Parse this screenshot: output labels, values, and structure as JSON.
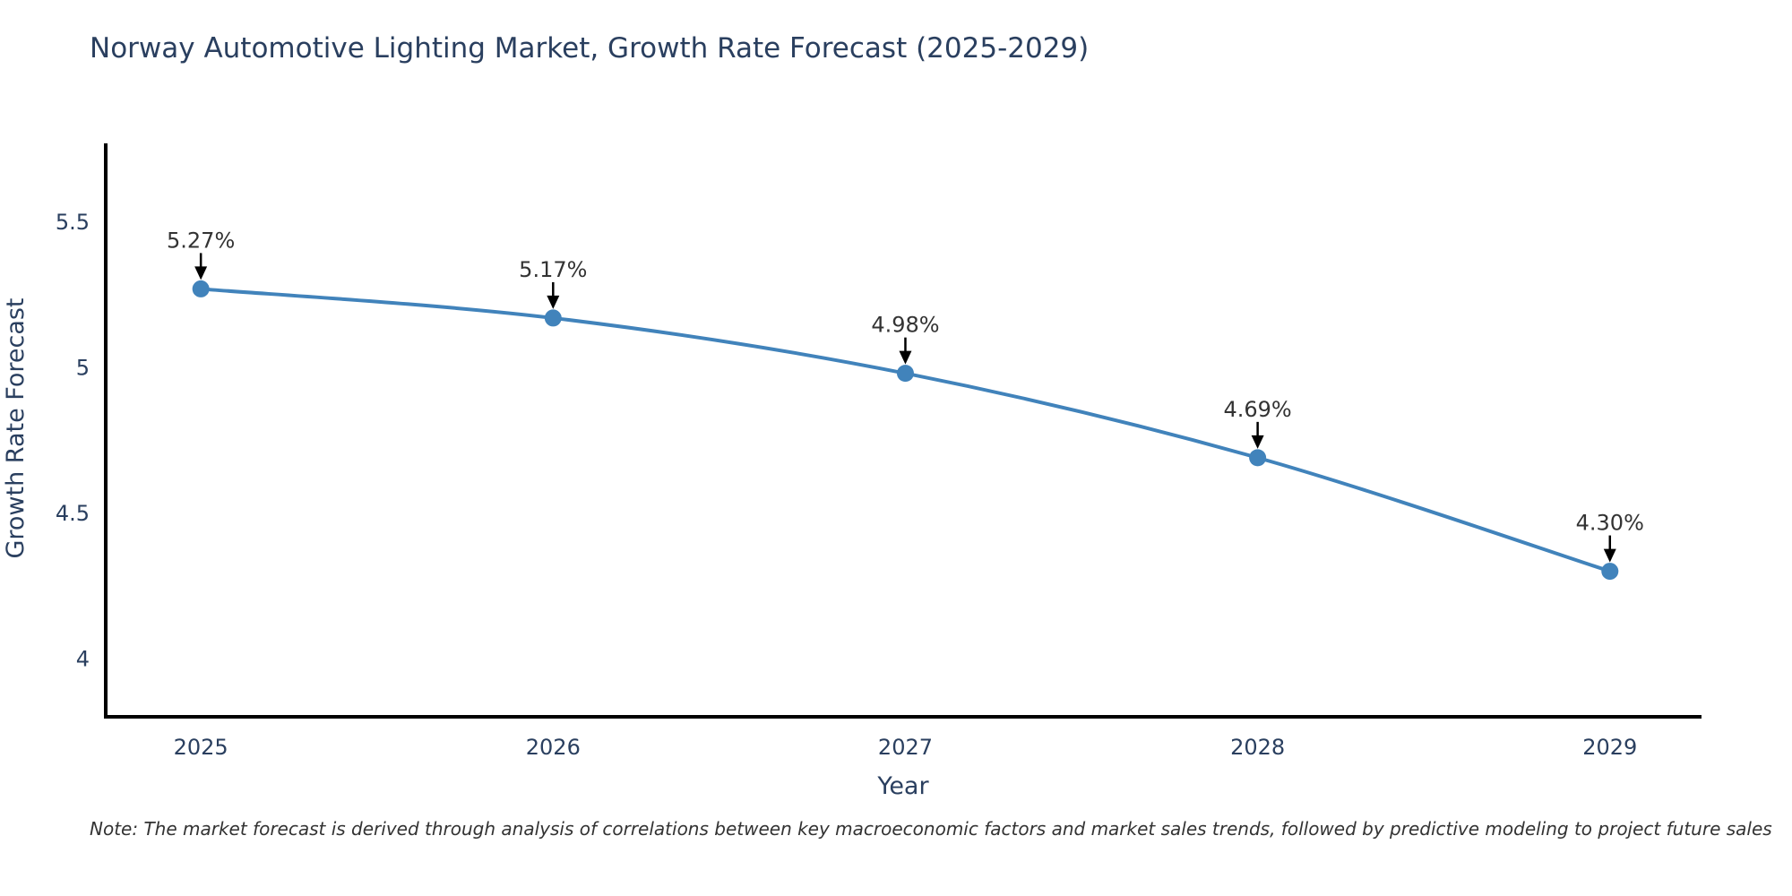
{
  "page": {
    "title": "Norway Automotive Lighting Market, Growth Rate Forecast (2025-2029)",
    "note": "Note: The market forecast is derived through analysis of correlations between key macroeconomic factors and market sales trends, followed by predictive modeling to project future sales"
  },
  "chart_data": {
    "type": "line",
    "title": "Norway Automotive Lighting Market, Growth Rate Forecast (2025-2029)",
    "x": [
      2025,
      2026,
      2027,
      2028,
      2029
    ],
    "values": [
      5.27,
      5.17,
      4.98,
      4.69,
      4.3
    ],
    "point_labels": [
      "5.27%",
      "5.17%",
      "4.98%",
      "4.69%",
      "4.30%"
    ],
    "series_name": "Growth Rate Forecast",
    "xlabel": "Year",
    "ylabel": "Growth Rate Forecast",
    "xticks": [
      2025,
      2026,
      2027,
      2028,
      2029
    ],
    "yticks": [
      4,
      4.5,
      5,
      5.5
    ],
    "xlim": [
      2024.73,
      2029.26
    ],
    "ylim": [
      3.8,
      5.77
    ],
    "grid": false,
    "legend": "none",
    "line_shape": "spline",
    "line_color": "#4183bb",
    "marker_color": "#4183bb",
    "axis_color": "#000000",
    "tick_color": "#2a3f5f",
    "annotation_text_color": "#333333",
    "annotation_arrow_color": "#000000"
  }
}
